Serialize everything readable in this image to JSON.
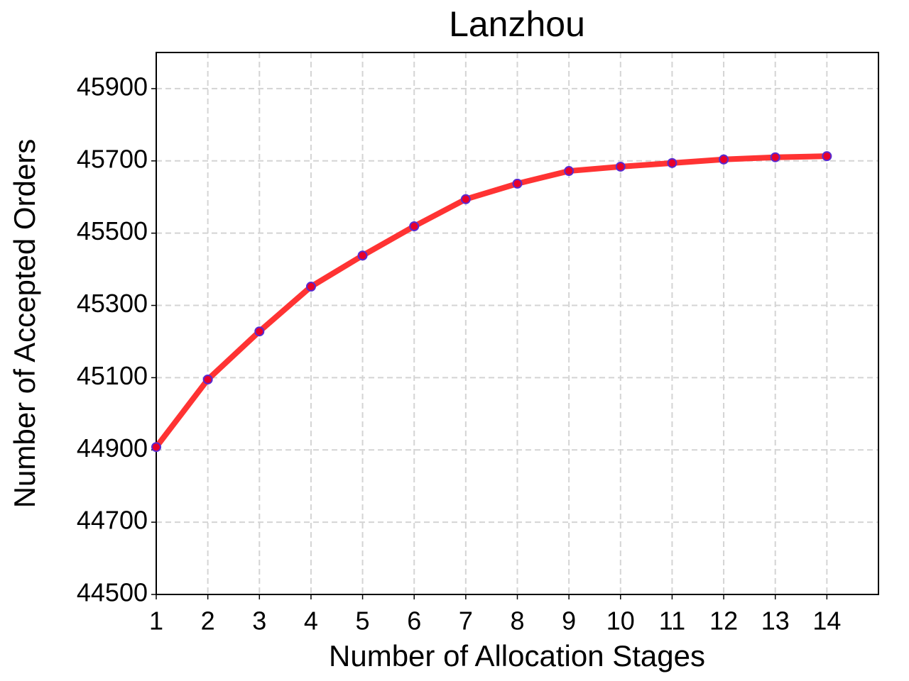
{
  "chart_data": {
    "type": "line",
    "title": "Lanzhou",
    "x_label": "Number of Allocation Stages",
    "y_label": "Number of Accepted Orders",
    "x": [
      1,
      2,
      3,
      4,
      5,
      6,
      7,
      8,
      9,
      10,
      11,
      12,
      13,
      14
    ],
    "values": [
      44908,
      45095,
      45228,
      45352,
      45438,
      45519,
      45594,
      45637,
      45672,
      45684,
      45694,
      45704,
      45710,
      45713
    ],
    "color": "#ff3333",
    "marker_color": "#e8002a",
    "marker_edge_color": "#5a2ad0",
    "xlim": [
      1,
      15
    ],
    "xticks": [
      1,
      2,
      3,
      4,
      5,
      6,
      7,
      8,
      9,
      10,
      11,
      12,
      13,
      14
    ],
    "ylim": [
      44500,
      46000
    ],
    "yticks": [
      44500,
      44700,
      44900,
      45100,
      45300,
      45500,
      45700,
      45900
    ],
    "grid": true
  }
}
